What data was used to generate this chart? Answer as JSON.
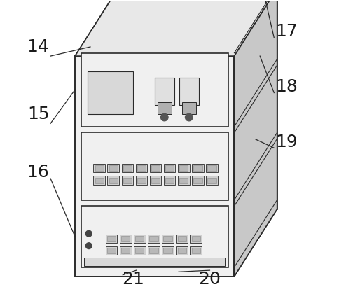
{
  "background_color": "#ffffff",
  "line_color": "#2a2a2a",
  "fill_light": "#f0f0f0",
  "fill_mid": "#d8d8d8",
  "fill_dark": "#b0b0b0",
  "fill_top": "#e8e8e8",
  "fill_side": "#c8c8c8",
  "label_fontsize": 18,
  "figsize": [
    4.94,
    4.4
  ],
  "dpi": 100
}
